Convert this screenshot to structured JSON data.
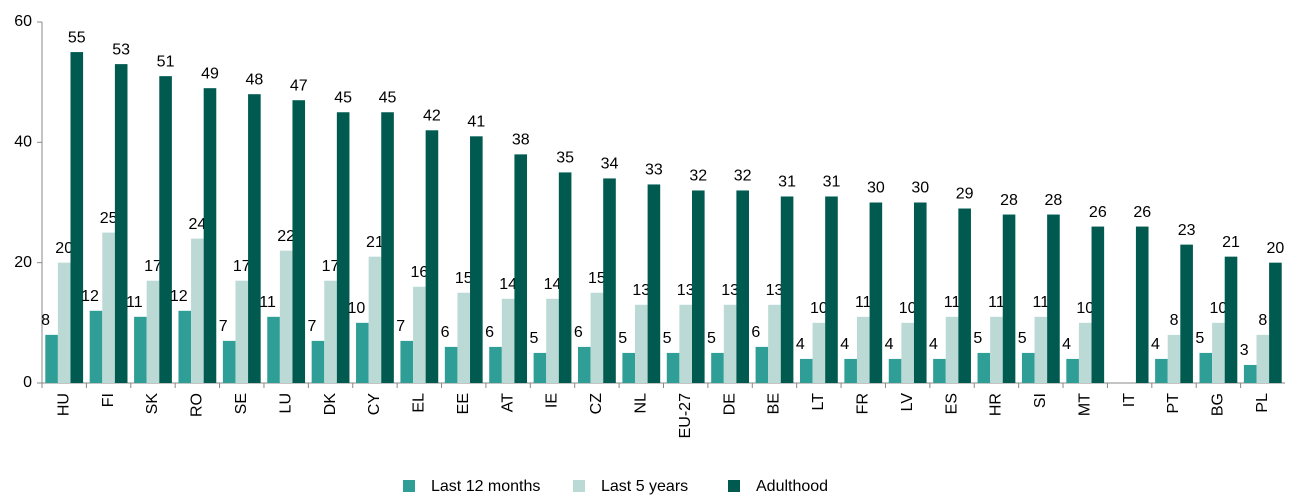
{
  "chart_data": {
    "type": "bar",
    "categories": [
      "HU",
      "FI",
      "SK",
      "RO",
      "SE",
      "LU",
      "DK",
      "CY",
      "EL",
      "EE",
      "AT",
      "IE",
      "CZ",
      "NL",
      "EU-27",
      "DE",
      "BE",
      "LT",
      "FR",
      "LV",
      "ES",
      "HR",
      "SI",
      "MT",
      "IT",
      "PT",
      "BG",
      "PL"
    ],
    "series": [
      {
        "name": "Last 12 months",
        "color": "#2e9e96",
        "values": [
          8,
          12,
          11,
          12,
          7,
          11,
          7,
          10,
          7,
          6,
          6,
          5,
          6,
          5,
          5,
          5,
          6,
          4,
          4,
          4,
          4,
          5,
          5,
          4,
          null,
          4,
          5,
          3
        ]
      },
      {
        "name": "Last 5 years",
        "color": "#bcdad5",
        "values": [
          20,
          25,
          17,
          24,
          17,
          22,
          17,
          21,
          16,
          15,
          14,
          14,
          15,
          13,
          13,
          13,
          13,
          10,
          11,
          10,
          11,
          11,
          11,
          10,
          null,
          8,
          10,
          8
        ]
      },
      {
        "name": "Adulthood",
        "color": "#005a4f",
        "values": [
          55,
          53,
          51,
          49,
          48,
          47,
          45,
          45,
          42,
          41,
          38,
          35,
          34,
          33,
          32,
          32,
          31,
          31,
          30,
          30,
          29,
          28,
          28,
          26,
          26,
          23,
          21,
          20
        ]
      }
    ],
    "ylim": [
      0,
      60
    ],
    "yticks": [
      0,
      20,
      40,
      60
    ],
    "grid": false,
    "legend": "bottom"
  }
}
